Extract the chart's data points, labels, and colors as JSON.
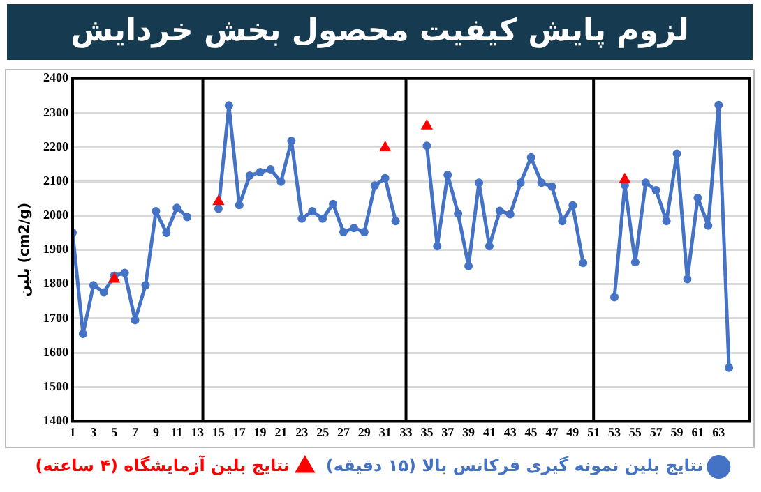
{
  "chart_data": {
    "type": "line",
    "title": "لزوم پایش کیفیت محصول بخش خردایش",
    "ylabel": "بلین (cm2/g)",
    "xlim": [
      1,
      66
    ],
    "xticks": [
      1,
      3,
      5,
      7,
      9,
      11,
      13,
      15,
      17,
      19,
      21,
      23,
      25,
      27,
      29,
      31,
      33,
      35,
      37,
      39,
      41,
      43,
      45,
      47,
      49,
      51,
      53,
      55,
      57,
      59,
      61,
      63
    ],
    "ylim": [
      1400,
      2400
    ],
    "yticks": [
      1400,
      1500,
      1600,
      1700,
      1800,
      1900,
      2000,
      2100,
      2200,
      2300,
      2400
    ],
    "grid": "y",
    "legend": "bottom",
    "ref_lines": [
      {
        "axis": "x",
        "value": 13.5,
        "color": "#000000",
        "line_style": "solid"
      },
      {
        "axis": "x",
        "value": 33,
        "color": "#000000",
        "line_style": "solid"
      },
      {
        "axis": "x",
        "value": 51,
        "color": "#000000",
        "line_style": "solid"
      }
    ],
    "series": [
      {
        "name": "نتایج بلین نمونه گیری فرکانس بالا (۱۵ دقیقه)",
        "type": "line",
        "color": "#4472c4",
        "marker": "circle",
        "line_style": "solid",
        "x": [
          1,
          2,
          3,
          4,
          5,
          6,
          7,
          8,
          9,
          10,
          11,
          12,
          13,
          14,
          15,
          16,
          17,
          18,
          19,
          20,
          21,
          22,
          23,
          24,
          25,
          26,
          27,
          28,
          29,
          30,
          31,
          32,
          33,
          34,
          35,
          36,
          37,
          38,
          39,
          40,
          41,
          42,
          43,
          44,
          45,
          46,
          47,
          48,
          49,
          50,
          51,
          52,
          53,
          54,
          55,
          56,
          57,
          58,
          59,
          60,
          61,
          62,
          63,
          64
        ],
        "values": [
          1950,
          1655,
          1797,
          1776,
          1825,
          1833,
          1695,
          1797,
          2013,
          1950,
          2023,
          1996,
          null,
          null,
          2020,
          2322,
          2031,
          2117,
          2127,
          2135,
          2099,
          2218,
          1991,
          2013,
          1991,
          2034,
          1952,
          1964,
          1952,
          2088,
          2109,
          1984,
          null,
          null,
          2204,
          1911,
          2119,
          2006,
          1853,
          2096,
          1911,
          2014,
          2004,
          2096,
          2170,
          2096,
          2085,
          1984,
          2030,
          1862,
          null,
          null,
          1762,
          2089,
          1864,
          2096,
          2074,
          1984,
          2181,
          1815,
          2052,
          1971,
          2323,
          1556
        ]
      },
      {
        "name": "نتایج بلین آزمایشگاه (۴ ساعته)",
        "type": "scatter",
        "color": "#ff0000",
        "marker": "triangle",
        "x": [
          5,
          15,
          31,
          35,
          54
        ],
        "values": [
          1815,
          2041,
          2198,
          2262,
          2105
        ]
      }
    ]
  }
}
